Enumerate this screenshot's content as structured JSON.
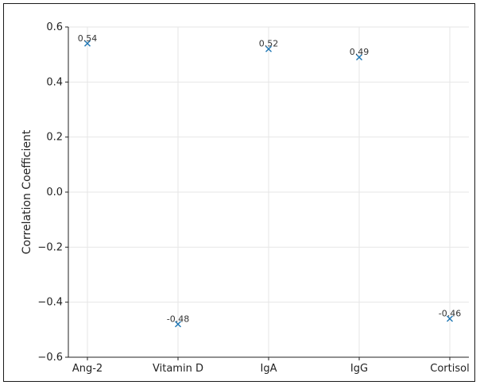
{
  "chart_data": {
    "type": "scatter",
    "title": "",
    "xlabel": "",
    "ylabel": "Correlation Coefficient",
    "categories": [
      "Ang-2",
      "Vitamin D",
      "IgA",
      "IgG",
      "Cortisol"
    ],
    "values": [
      0.54,
      -0.48,
      0.52,
      0.49,
      -0.46
    ],
    "value_labels": [
      "0.54",
      "-0.48",
      "0.52",
      "0.49",
      "-0.46"
    ],
    "ylim": [
      -0.6,
      0.6
    ],
    "yticks": [
      -0.6,
      -0.4,
      -0.2,
      0.0,
      0.2,
      0.4,
      0.6
    ],
    "ytick_labels": [
      "−0.6",
      "−0.4",
      "−0.2",
      "0.0",
      "0.2",
      "0.4",
      "0.6"
    ],
    "marker": "x",
    "marker_color": "#1f77b4",
    "grid": true,
    "legend": "none"
  }
}
